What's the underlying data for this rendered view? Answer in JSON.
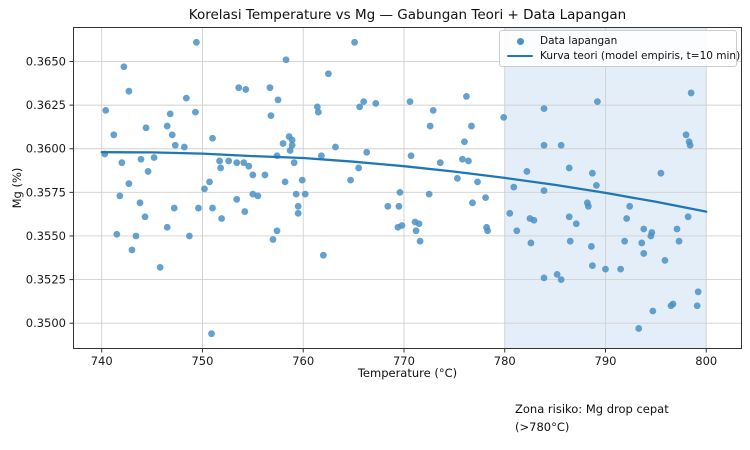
{
  "chart_data": {
    "type": "scatter",
    "title": "Korelasi Temperature vs Mg — Gabungan Teori + Data Lapangan",
    "xlabel": "Temperature (°C)",
    "ylabel": "Mg (%)",
    "xlim": [
      737.2,
      803.5
    ],
    "ylim": [
      0.34855,
      0.36695
    ],
    "xticks": [
      740,
      750,
      760,
      770,
      780,
      790,
      800
    ],
    "yticks": [
      0.35,
      0.3525,
      0.355,
      0.3575,
      0.36,
      0.3625,
      0.365
    ],
    "ytick_labels": [
      "0.3500",
      "0.3525",
      "0.3550",
      "0.3575",
      "0.3600",
      "0.3625",
      "0.3650"
    ],
    "grid": true,
    "grid_color": "#d0d0d0",
    "spine_color": "#333333",
    "legend": {
      "position": "upper right",
      "entries": [
        {
          "label": "Data lapangan",
          "marker": "dot"
        },
        {
          "label": "Kurva teori (model empiris, t=10 min)",
          "marker": "line"
        }
      ]
    },
    "risk_zone": {
      "x_from": 780,
      "x_to": 800,
      "color": "#e4eef8"
    },
    "annotation": {
      "line1": "Zona risiko: Mg drop cepat",
      "line2": "(>780°C)"
    },
    "scatter": {
      "name": "Data lapangan",
      "color": "#4a90c6",
      "opacity": 0.85,
      "points": [
        [
          749.4,
          0.3661
        ],
        [
          742.2,
          0.3647
        ],
        [
          742.7,
          0.3633
        ],
        [
          748.4,
          0.3629
        ],
        [
          740.4,
          0.3622
        ],
        [
          746.8,
          0.362
        ],
        [
          749.3,
          0.3621
        ],
        [
          746.5,
          0.3613
        ],
        [
          744.4,
          0.3612
        ],
        [
          747.0,
          0.3608
        ],
        [
          741.2,
          0.3608
        ],
        [
          751.0,
          0.3606
        ],
        [
          747.3,
          0.3602
        ],
        [
          748.2,
          0.3601
        ],
        [
          740.3,
          0.3597
        ],
        [
          742.0,
          0.3592
        ],
        [
          743.9,
          0.3594
        ],
        [
          745.2,
          0.3595
        ],
        [
          751.7,
          0.3593
        ],
        [
          752.6,
          0.3593
        ],
        [
          753.4,
          0.3592
        ],
        [
          751.8,
          0.3589
        ],
        [
          744.6,
          0.3587
        ],
        [
          742.7,
          0.358
        ],
        [
          750.7,
          0.3581
        ],
        [
          753.6,
          0.3635
        ],
        [
          765.1,
          0.3661
        ],
        [
          758.3,
          0.3651
        ],
        [
          762.5,
          0.3643
        ],
        [
          756.7,
          0.3635
        ],
        [
          754.3,
          0.3634
        ],
        [
          757.5,
          0.3628
        ],
        [
          766.0,
          0.3627
        ],
        [
          767.2,
          0.3626
        ],
        [
          765.6,
          0.3624
        ],
        [
          761.4,
          0.3624
        ],
        [
          761.5,
          0.3621
        ],
        [
          756.8,
          0.3619
        ],
        [
          758.6,
          0.3607
        ],
        [
          758.9,
          0.3605
        ],
        [
          758.0,
          0.3603
        ],
        [
          758.9,
          0.3602
        ],
        [
          758.7,
          0.3599
        ],
        [
          763.2,
          0.3601
        ],
        [
          757.4,
          0.3596
        ],
        [
          761.8,
          0.3596
        ],
        [
          766.3,
          0.3598
        ],
        [
          754.1,
          0.3592
        ],
        [
          754.6,
          0.359
        ],
        [
          759.1,
          0.3592
        ],
        [
          765.5,
          0.3589
        ],
        [
          755.0,
          0.3585
        ],
        [
          756.2,
          0.3585
        ],
        [
          758.2,
          0.3581
        ],
        [
          759.9,
          0.3582
        ],
        [
          764.7,
          0.3582
        ],
        [
          770.6,
          0.3627
        ],
        [
          776.2,
          0.363
        ],
        [
          772.9,
          0.3622
        ],
        [
          779.9,
          0.3618
        ],
        [
          783.9,
          0.3623
        ],
        [
          772.6,
          0.3613
        ],
        [
          776.7,
          0.3613
        ],
        [
          776.0,
          0.3604
        ],
        [
          783.9,
          0.3602
        ],
        [
          785.6,
          0.3602
        ],
        [
          770.7,
          0.3596
        ],
        [
          775.8,
          0.3594
        ],
        [
          776.4,
          0.3593
        ],
        [
          773.6,
          0.3592
        ],
        [
          786.4,
          0.3589
        ],
        [
          782.2,
          0.3587
        ],
        [
          775.3,
          0.3583
        ],
        [
          777.3,
          0.3581
        ],
        [
          780.9,
          0.3578
        ],
        [
          798.5,
          0.3632
        ],
        [
          789.2,
          0.3627
        ],
        [
          798.0,
          0.3608
        ],
        [
          798.3,
          0.3604
        ],
        [
          798.4,
          0.3602
        ],
        [
          788.7,
          0.3586
        ],
        [
          795.5,
          0.3586
        ],
        [
          789.1,
          0.3579
        ],
        [
          750.2,
          0.3577
        ],
        [
          741.8,
          0.3573
        ],
        [
          743.8,
          0.3569
        ],
        [
          744.3,
          0.3561
        ],
        [
          747.2,
          0.3566
        ],
        [
          749.6,
          0.3566
        ],
        [
          751.0,
          0.3566
        ],
        [
          751.9,
          0.356
        ],
        [
          753.4,
          0.3571
        ],
        [
          746.5,
          0.3555
        ],
        [
          741.5,
          0.3551
        ],
        [
          743.4,
          0.355
        ],
        [
          748.7,
          0.355
        ],
        [
          743.0,
          0.3542
        ],
        [
          745.8,
          0.3532
        ],
        [
          750.9,
          0.3494
        ],
        [
          755.0,
          0.3574
        ],
        [
          755.5,
          0.3573
        ],
        [
          754.2,
          0.3564
        ],
        [
          759.3,
          0.3574
        ],
        [
          760.2,
          0.3574
        ],
        [
          759.5,
          0.3567
        ],
        [
          759.5,
          0.3563
        ],
        [
          757.4,
          0.3553
        ],
        [
          757.0,
          0.3548
        ],
        [
          762.0,
          0.3539
        ],
        [
          768.4,
          0.3567
        ],
        [
          769.5,
          0.3567
        ],
        [
          769.4,
          0.3555
        ],
        [
          769.8,
          0.3556
        ],
        [
          769.6,
          0.3575
        ],
        [
          772.5,
          0.3574
        ],
        [
          776.8,
          0.3569
        ],
        [
          778.1,
          0.3572
        ],
        [
          771.1,
          0.3558
        ],
        [
          771.5,
          0.3557
        ],
        [
          771.2,
          0.3553
        ],
        [
          771.6,
          0.3547
        ],
        [
          778.2,
          0.3555
        ],
        [
          778.3,
          0.3553
        ],
        [
          780.5,
          0.3563
        ],
        [
          781.2,
          0.3553
        ],
        [
          782.5,
          0.356
        ],
        [
          782.9,
          0.3559
        ],
        [
          783.9,
          0.3576
        ],
        [
          786.4,
          0.3561
        ],
        [
          782.6,
          0.3546
        ],
        [
          786.5,
          0.3547
        ],
        [
          783.9,
          0.3526
        ],
        [
          785.2,
          0.3528
        ],
        [
          785.6,
          0.3525
        ],
        [
          788.2,
          0.3569
        ],
        [
          788.3,
          0.3567
        ],
        [
          787.1,
          0.3557
        ],
        [
          792.4,
          0.3567
        ],
        [
          792.1,
          0.356
        ],
        [
          793.8,
          0.3554
        ],
        [
          794.6,
          0.3552
        ],
        [
          794.5,
          0.355
        ],
        [
          791.9,
          0.3547
        ],
        [
          793.6,
          0.3546
        ],
        [
          793.8,
          0.354
        ],
        [
          797.1,
          0.3554
        ],
        [
          798.2,
          0.3561
        ],
        [
          797.3,
          0.3547
        ],
        [
          788.6,
          0.3544
        ],
        [
          795.9,
          0.3536
        ],
        [
          788.7,
          0.3533
        ],
        [
          790.0,
          0.3531
        ],
        [
          791.5,
          0.3531
        ],
        [
          799.2,
          0.3518
        ],
        [
          799.1,
          0.351
        ],
        [
          796.5,
          0.351
        ],
        [
          796.7,
          0.3511
        ],
        [
          794.7,
          0.3507
        ],
        [
          793.3,
          0.3497
        ]
      ]
    },
    "curve": {
      "name": "Kurva teori (model empiris, t=10 min)",
      "color": "#1f77b4",
      "width": 2.3,
      "points": [
        [
          740,
          0.3598
        ],
        [
          745,
          0.35979
        ],
        [
          750,
          0.35972
        ],
        [
          755,
          0.35958
        ],
        [
          760,
          0.35947
        ],
        [
          765,
          0.35926
        ],
        [
          770,
          0.359
        ],
        [
          775,
          0.35869
        ],
        [
          780,
          0.35833
        ],
        [
          785,
          0.35793
        ],
        [
          790,
          0.35747
        ],
        [
          795,
          0.35696
        ],
        [
          800,
          0.3564
        ]
      ]
    }
  }
}
